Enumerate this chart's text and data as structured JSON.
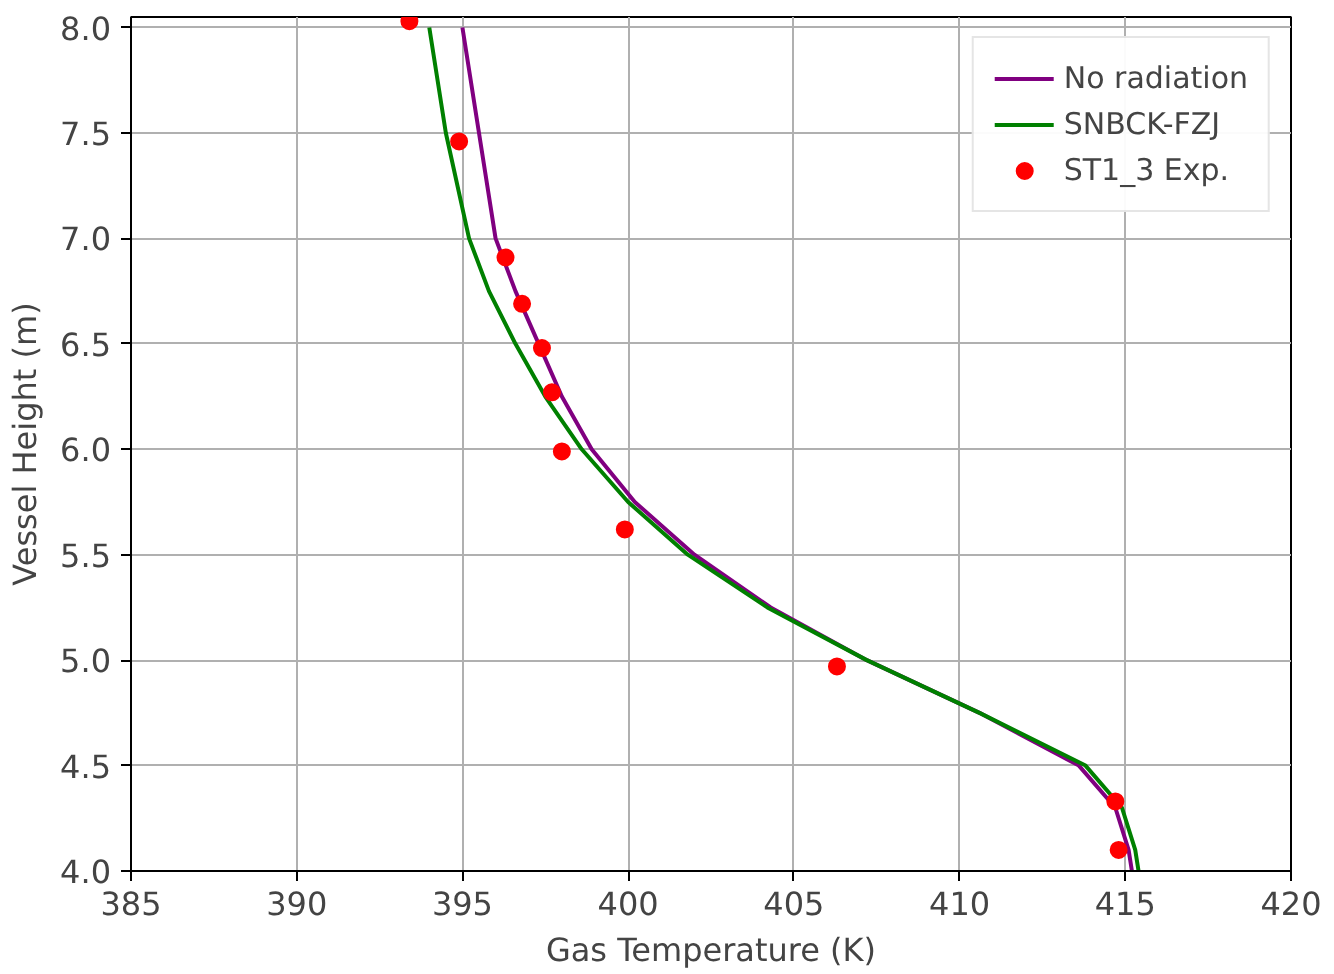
{
  "chart_data": {
    "type": "line",
    "xlabel": "Gas Temperature (K)",
    "ylabel": "Vessel Height (m)",
    "xlim": [
      385,
      420
    ],
    "ylim": [
      4.0,
      8.05
    ],
    "xticks": [
      385,
      390,
      395,
      400,
      405,
      410,
      415,
      420
    ],
    "yticks": [
      {
        "value": 4.0,
        "label": "4.0"
      },
      {
        "value": 4.5,
        "label": "4.5"
      },
      {
        "value": 5.0,
        "label": "5.0"
      },
      {
        "value": 5.5,
        "label": "5.5"
      },
      {
        "value": 6.0,
        "label": "6.0"
      },
      {
        "value": 6.5,
        "label": "6.5"
      },
      {
        "value": 7.0,
        "label": "7.0"
      },
      {
        "value": 7.5,
        "label": "7.5"
      },
      {
        "value": 8.0,
        "label": "8.0"
      }
    ],
    "grid": true,
    "legend": "top right",
    "series": [
      {
        "name": "No radiation",
        "color": "#800080",
        "x": [
          415.2,
          415.1,
          414.7,
          413.6,
          410.6,
          407.2,
          404.3,
          402.0,
          400.2,
          398.9,
          398.0,
          397.3,
          396.6,
          396.0,
          395.5,
          395.0
        ],
        "values": [
          4.0,
          4.1,
          4.3,
          4.5,
          4.75,
          5.0,
          5.25,
          5.5,
          5.75,
          6.0,
          6.25,
          6.5,
          6.75,
          7.0,
          7.5,
          8.0
        ]
      },
      {
        "name": "SNBCK-FZJ",
        "color": "#008000",
        "x": [
          415.4,
          415.3,
          414.9,
          413.8,
          410.6,
          407.2,
          404.2,
          401.8,
          400.0,
          398.6,
          397.5,
          396.6,
          395.8,
          395.2,
          394.5,
          394.0
        ],
        "values": [
          4.0,
          4.1,
          4.3,
          4.5,
          4.75,
          5.0,
          5.25,
          5.5,
          5.75,
          6.0,
          6.25,
          6.5,
          6.75,
          7.0,
          7.5,
          8.0
        ]
      },
      {
        "name": "ST1_3 Exp.",
        "type": "scatter",
        "marker": "circle",
        "color": "#ff0000",
        "x": [
          393.4,
          394.9,
          396.3,
          396.8,
          397.4,
          397.7,
          398.0,
          399.9,
          406.3,
          414.7,
          414.8
        ],
        "values": [
          8.03,
          7.46,
          6.91,
          6.69,
          6.48,
          6.27,
          5.99,
          5.62,
          4.97,
          4.33,
          4.1
        ]
      }
    ]
  }
}
